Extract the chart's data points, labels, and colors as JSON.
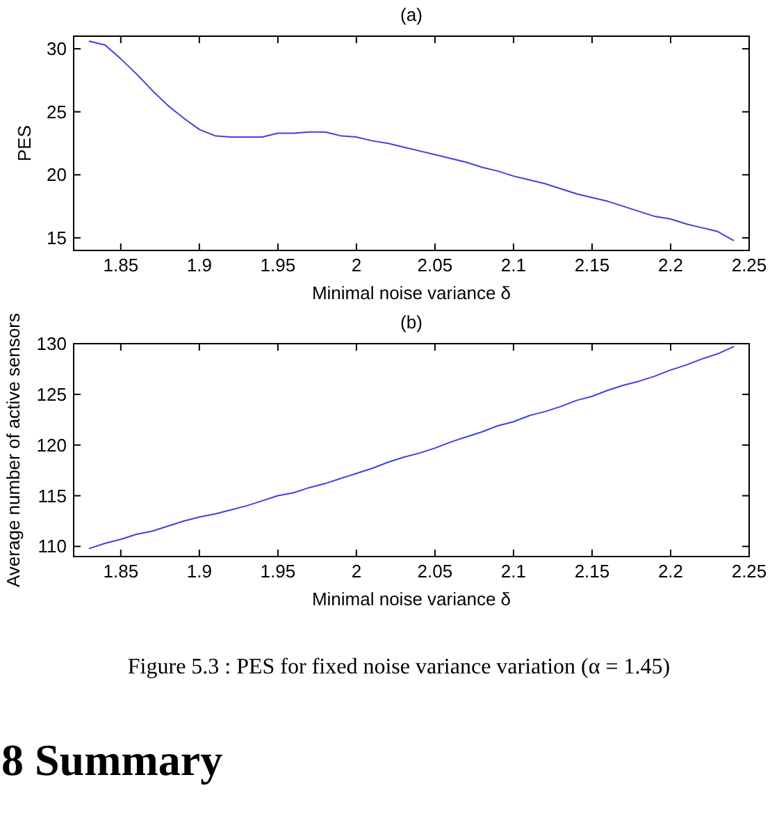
{
  "chart_data": [
    {
      "type": "line",
      "title": "(a)",
      "xlabel": "Minimal noise variance δ",
      "ylabel": "PES",
      "xlim": [
        1.82,
        2.25
      ],
      "ylim": [
        14,
        31
      ],
      "xticks": [
        1.85,
        1.9,
        1.95,
        2,
        2.05,
        2.1,
        2.15,
        2.2,
        2.25
      ],
      "yticks": [
        15,
        20,
        25,
        30
      ],
      "x": [
        1.83,
        1.84,
        1.85,
        1.86,
        1.87,
        1.88,
        1.89,
        1.9,
        1.91,
        1.92,
        1.94,
        1.95,
        1.96,
        1.97,
        1.98,
        1.99,
        2.0,
        2.01,
        2.02,
        2.03,
        2.04,
        2.05,
        2.06,
        2.07,
        2.08,
        2.09,
        2.1,
        2.11,
        2.12,
        2.13,
        2.14,
        2.15,
        2.16,
        2.17,
        2.18,
        2.19,
        2.2,
        2.21,
        2.22,
        2.23,
        2.24
      ],
      "series": [
        {
          "color": "#4040e0",
          "values": [
            30.6,
            30.3,
            29.2,
            28.0,
            26.7,
            25.5,
            24.5,
            23.6,
            23.1,
            23.0,
            23.0,
            23.3,
            23.3,
            23.4,
            23.4,
            23.1,
            23.0,
            22.7,
            22.5,
            22.2,
            21.9,
            21.6,
            21.3,
            21.0,
            20.6,
            20.3,
            19.9,
            19.6,
            19.3,
            18.9,
            18.5,
            18.2,
            17.9,
            17.5,
            17.1,
            16.7,
            16.5,
            16.1,
            15.8,
            15.5,
            14.8
          ]
        }
      ]
    },
    {
      "type": "line",
      "title": "(b)",
      "xlabel": "Minimal noise variance δ",
      "ylabel": "Average number of active sensors",
      "xlim": [
        1.82,
        2.25
      ],
      "ylim": [
        109,
        130
      ],
      "xticks": [
        1.85,
        1.9,
        1.95,
        2,
        2.05,
        2.1,
        2.15,
        2.2,
        2.25
      ],
      "yticks": [
        110,
        115,
        120,
        125,
        130
      ],
      "x": [
        1.83,
        1.84,
        1.85,
        1.86,
        1.87,
        1.88,
        1.89,
        1.9,
        1.91,
        1.92,
        1.93,
        1.94,
        1.95,
        1.96,
        1.97,
        1.98,
        1.99,
        2.0,
        2.01,
        2.02,
        2.03,
        2.04,
        2.05,
        2.06,
        2.07,
        2.08,
        2.09,
        2.1,
        2.11,
        2.12,
        2.13,
        2.14,
        2.15,
        2.16,
        2.17,
        2.18,
        2.19,
        2.2,
        2.21,
        2.22,
        2.23,
        2.24
      ],
      "series": [
        {
          "color": "#4040e0",
          "values": [
            109.8,
            110.3,
            110.7,
            111.2,
            111.5,
            112.0,
            112.5,
            112.9,
            113.2,
            113.6,
            114.0,
            114.5,
            115.0,
            115.3,
            115.8,
            116.2,
            116.7,
            117.2,
            117.7,
            118.3,
            118.8,
            119.2,
            119.7,
            120.3,
            120.8,
            121.3,
            121.9,
            122.3,
            122.9,
            123.3,
            123.8,
            124.4,
            124.8,
            125.4,
            125.9,
            126.3,
            126.8,
            127.4,
            127.9,
            128.5,
            129.0,
            129.7
          ]
        }
      ],
      "annotations": [
        "Figure 5.3 : PES for fixed noise variance variation (α = 1.45)",
        "8 Summary"
      ]
    }
  ]
}
